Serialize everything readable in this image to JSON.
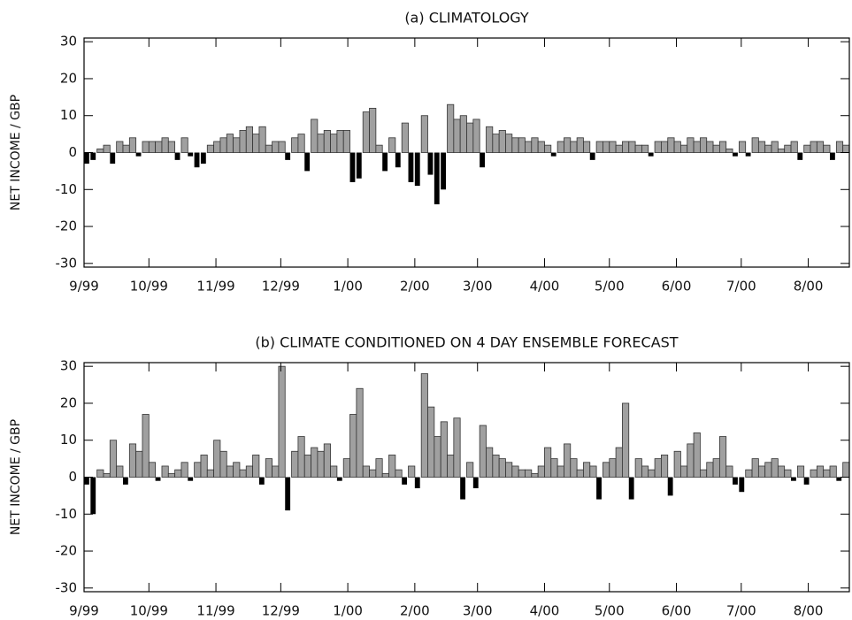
{
  "chart_data": [
    {
      "type": "bar",
      "title": "(a) CLIMATOLOGY",
      "ylabel": "NET INCOME / GBP",
      "x": [
        0,
        3,
        6,
        9,
        12,
        15,
        18,
        21,
        24,
        27,
        30,
        33,
        36,
        39,
        42,
        45,
        48,
        51,
        54,
        57,
        60,
        63,
        66,
        69,
        72,
        75,
        78,
        81,
        84,
        87,
        90,
        93,
        96,
        99,
        102,
        105,
        108,
        111,
        114,
        117,
        120,
        123,
        126,
        129,
        132,
        135,
        138,
        141,
        144,
        147,
        150,
        153,
        156,
        159,
        162,
        165,
        168,
        171,
        174,
        177,
        180,
        183,
        186,
        189,
        192,
        195,
        198,
        201,
        204,
        207,
        210,
        213,
        216,
        219,
        222,
        225,
        228,
        231,
        234,
        237,
        240,
        243,
        246,
        249,
        252,
        255,
        258,
        261,
        264,
        267,
        270,
        273,
        276,
        279,
        282,
        285,
        288,
        291,
        294,
        297,
        300,
        303,
        306,
        309,
        312,
        315,
        318,
        321,
        324,
        327,
        330,
        333,
        336,
        339,
        342,
        345,
        348,
        351
      ],
      "values": [
        -3,
        -2,
        1,
        2,
        -3,
        3,
        2,
        4,
        -1,
        3,
        3,
        3,
        4,
        3,
        -2,
        4,
        -1,
        -4,
        -3,
        2,
        3,
        4,
        5,
        4,
        6,
        7,
        5,
        7,
        2,
        3,
        3,
        -2,
        4,
        5,
        -5,
        9,
        5,
        6,
        5,
        6,
        6,
        -8,
        -7,
        11,
        12,
        2,
        -5,
        4,
        -4,
        8,
        -8,
        -9,
        10,
        -6,
        -14,
        -10,
        13,
        9,
        10,
        8,
        9,
        -4,
        7,
        5,
        6,
        5,
        4,
        4,
        3,
        4,
        3,
        2,
        -1,
        3,
        4,
        3,
        4,
        3,
        -2,
        3,
        3,
        3,
        2,
        3,
        3,
        2,
        2,
        -1,
        3,
        3,
        4,
        3,
        2,
        4,
        3,
        4,
        3,
        2,
        3,
        1,
        -1,
        3,
        -1,
        4,
        3,
        2,
        3,
        1,
        2,
        3,
        -2,
        2,
        3,
        3,
        2,
        -2,
        3,
        2
      ],
      "color": "#a0a0a0",
      "negative_color": "#000000",
      "xlim": [
        0,
        354
      ],
      "ylim": [
        -31,
        31
      ],
      "yticks": [
        -30,
        -20,
        -10,
        0,
        10,
        20,
        30
      ],
      "xticks": [
        {
          "value": 0,
          "label": "9/99"
        },
        {
          "value": 30,
          "label": "10/99"
        },
        {
          "value": 61,
          "label": "11/99"
        },
        {
          "value": 91,
          "label": "12/99"
        },
        {
          "value": 122,
          "label": "1/00"
        },
        {
          "value": 153,
          "label": "2/00"
        },
        {
          "value": 182,
          "label": "3/00"
        },
        {
          "value": 213,
          "label": "4/00"
        },
        {
          "value": 243,
          "label": "5/00"
        },
        {
          "value": 274,
          "label": "6/00"
        },
        {
          "value": 304,
          "label": "7/00"
        },
        {
          "value": 335,
          "label": "8/00"
        }
      ]
    },
    {
      "type": "bar",
      "title": "(b) CLIMATE CONDITIONED ON 4 DAY ENSEMBLE FORECAST",
      "ylabel": "NET INCOME / GBP",
      "x": [
        0,
        3,
        6,
        9,
        12,
        15,
        18,
        21,
        24,
        27,
        30,
        33,
        36,
        39,
        42,
        45,
        48,
        51,
        54,
        57,
        60,
        63,
        66,
        69,
        72,
        75,
        78,
        81,
        84,
        87,
        90,
        93,
        96,
        99,
        102,
        105,
        108,
        111,
        114,
        117,
        120,
        123,
        126,
        129,
        132,
        135,
        138,
        141,
        144,
        147,
        150,
        153,
        156,
        159,
        162,
        165,
        168,
        171,
        174,
        177,
        180,
        183,
        186,
        189,
        192,
        195,
        198,
        201,
        204,
        207,
        210,
        213,
        216,
        219,
        222,
        225,
        228,
        231,
        234,
        237,
        240,
        243,
        246,
        249,
        252,
        255,
        258,
        261,
        264,
        267,
        270,
        273,
        276,
        279,
        282,
        285,
        288,
        291,
        294,
        297,
        300,
        303,
        306,
        309,
        312,
        315,
        318,
        321,
        324,
        327,
        330,
        333,
        336,
        339,
        342,
        345,
        348,
        351
      ],
      "values": [
        -2,
        -10,
        2,
        1,
        10,
        3,
        -2,
        9,
        7,
        17,
        4,
        -1,
        3,
        1,
        2,
        4,
        -1,
        4,
        6,
        2,
        10,
        7,
        3,
        4,
        2,
        3,
        6,
        -2,
        5,
        3,
        30,
        -9,
        7,
        11,
        6,
        8,
        7,
        9,
        3,
        -1,
        5,
        17,
        24,
        3,
        2,
        5,
        1,
        6,
        2,
        -2,
        3,
        -3,
        28,
        19,
        11,
        15,
        6,
        16,
        -6,
        4,
        -3,
        14,
        8,
        6,
        5,
        4,
        3,
        2,
        2,
        1,
        3,
        8,
        5,
        3,
        9,
        5,
        2,
        4,
        3,
        -6,
        4,
        5,
        8,
        20,
        -6,
        5,
        3,
        2,
        5,
        6,
        -5,
        7,
        3,
        9,
        12,
        2,
        4,
        5,
        11,
        3,
        -2,
        -4,
        2,
        5,
        3,
        4,
        5,
        3,
        2,
        -1,
        3,
        -2,
        2,
        3,
        2,
        3,
        -1,
        4
      ],
      "color": "#a0a0a0",
      "negative_color": "#000000",
      "xlim": [
        0,
        354
      ],
      "ylim": [
        -31,
        31
      ],
      "yticks": [
        -30,
        -20,
        -10,
        0,
        10,
        20,
        30
      ],
      "xticks": [
        {
          "value": 0,
          "label": "9/99"
        },
        {
          "value": 30,
          "label": "10/99"
        },
        {
          "value": 61,
          "label": "11/99"
        },
        {
          "value": 91,
          "label": "12/99"
        },
        {
          "value": 122,
          "label": "1/00"
        },
        {
          "value": 153,
          "label": "2/00"
        },
        {
          "value": 182,
          "label": "3/00"
        },
        {
          "value": 213,
          "label": "4/00"
        },
        {
          "value": 243,
          "label": "5/00"
        },
        {
          "value": 274,
          "label": "6/00"
        },
        {
          "value": 304,
          "label": "7/00"
        },
        {
          "value": 335,
          "label": "8/00"
        }
      ]
    }
  ]
}
